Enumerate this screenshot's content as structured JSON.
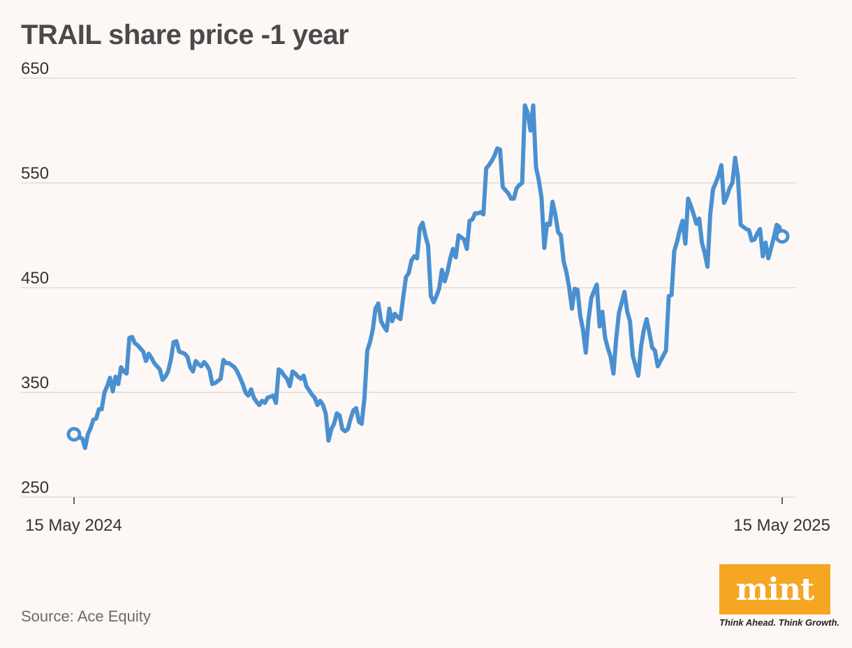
{
  "chart_data": {
    "type": "line",
    "title": "TRAIL share price -1 year",
    "source": "Source: Ace Equity",
    "xlabel": "",
    "ylabel": "",
    "ylim": [
      250,
      650
    ],
    "yticks": [
      250,
      350,
      450,
      550,
      650
    ],
    "ytick_labels": [
      "250",
      "350",
      "450",
      "550",
      "650"
    ],
    "xtick_labels": [
      "15 May 2024",
      "15 May 2025"
    ],
    "grid": true,
    "line_color": "#4a90d0",
    "series": [
      {
        "name": "TRAIL",
        "values": [
          310,
          309,
          307,
          306,
          297,
          310,
          316,
          324,
          325,
          334,
          334,
          350,
          356,
          364,
          351,
          365,
          358,
          374,
          370,
          368,
          402,
          403,
          397,
          395,
          392,
          389,
          380,
          387,
          383,
          378,
          375,
          372,
          362,
          365,
          370,
          381,
          398,
          399,
          389,
          388,
          387,
          384,
          374,
          370,
          380,
          377,
          375,
          379,
          376,
          371,
          358,
          359,
          361,
          363,
          381,
          378,
          378,
          376,
          374,
          370,
          364,
          358,
          350,
          347,
          353,
          345,
          341,
          338,
          342,
          340,
          345,
          346,
          347,
          340,
          372,
          370,
          366,
          363,
          356,
          370,
          368,
          365,
          363,
          366,
          356,
          352,
          348,
          345,
          338,
          342,
          338,
          330,
          304,
          315,
          320,
          330,
          328,
          315,
          313,
          315,
          325,
          333,
          335,
          322,
          320,
          345,
          390,
          398,
          410,
          430,
          435,
          418,
          413,
          409,
          430,
          418,
          425,
          422,
          420,
          441,
          460,
          464,
          476,
          480,
          478,
          507,
          512,
          500,
          490,
          442,
          436,
          442,
          449,
          467,
          456,
          465,
          478,
          487,
          479,
          500,
          498,
          496,
          487,
          514,
          515,
          521,
          521,
          522,
          520,
          564,
          567,
          571,
          576,
          583,
          582,
          546,
          543,
          540,
          535,
          535,
          545,
          548,
          550,
          624,
          617,
          600,
          624,
          565,
          553,
          536,
          488,
          511,
          510,
          532,
          520,
          503,
          500,
          475,
          465,
          450,
          430,
          449,
          448,
          423,
          410,
          388,
          420,
          440,
          447,
          453,
          413,
          427,
          402,
          392,
          384,
          368,
          401,
          426,
          436,
          446,
          427,
          418,
          385,
          375,
          366,
          394,
          410,
          420,
          407,
          393,
          390,
          375,
          380,
          385,
          390,
          442,
          443,
          485,
          494,
          505,
          514,
          492,
          535,
          528,
          520,
          511,
          516,
          493,
          483,
          470,
          520,
          544,
          550,
          557,
          567,
          531,
          537,
          545,
          550,
          574,
          556,
          510,
          508,
          506,
          505,
          495,
          496,
          502,
          506,
          480,
          493,
          478,
          488,
          498,
          510,
          508,
          499
        ]
      }
    ]
  },
  "branding": {
    "logo_text": "mint",
    "logo_color": "#f5a623",
    "tagline": "Think Ahead. Think Growth."
  }
}
